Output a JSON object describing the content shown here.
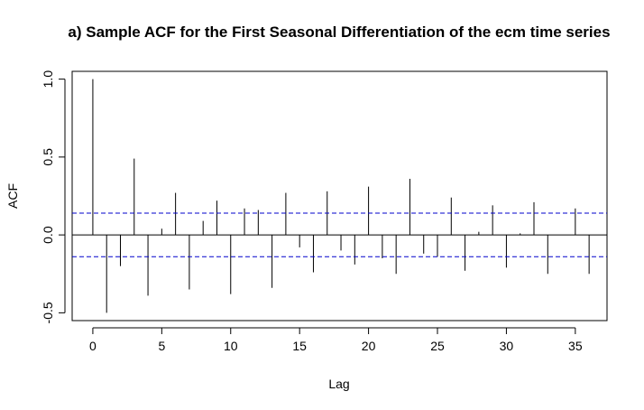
{
  "chart_data": {
    "type": "bar",
    "title": "a) Sample ACF for the First Seasonal Differentiation of the ecm time series",
    "xlabel": "Lag",
    "ylabel": "ACF",
    "xlim": [
      -1.5,
      37.3
    ],
    "ylim": [
      -0.55,
      1.05
    ],
    "x_ticks": [
      0,
      5,
      10,
      15,
      20,
      25,
      30,
      35
    ],
    "y_ticks": [
      -0.5,
      0.0,
      0.5,
      1.0
    ],
    "x_tick_labels": [
      "0",
      "5",
      "10",
      "15",
      "20",
      "25",
      "30",
      "35"
    ],
    "y_tick_labels": [
      "-0.5",
      "0.0",
      "0.5",
      "1.0"
    ],
    "lags": [
      0,
      1,
      2,
      3,
      4,
      5,
      6,
      7,
      8,
      9,
      10,
      11,
      12,
      13,
      14,
      15,
      16,
      17,
      18,
      19,
      20,
      21,
      22,
      23,
      24,
      25,
      26,
      27,
      28,
      29,
      30,
      31,
      32,
      33,
      34,
      35,
      36
    ],
    "values": [
      1.0,
      -0.5,
      -0.2,
      0.49,
      -0.39,
      0.04,
      0.27,
      -0.35,
      0.09,
      0.22,
      -0.38,
      0.17,
      0.16,
      -0.34,
      0.27,
      -0.08,
      -0.24,
      0.28,
      -0.1,
      -0.19,
      0.31,
      -0.15,
      -0.25,
      0.36,
      -0.12,
      -0.14,
      0.24,
      -0.23,
      0.02,
      0.19,
      -0.21,
      0.01,
      0.21,
      -0.25,
      0.0,
      0.17,
      -0.25
    ],
    "confidence_bound": 0.14,
    "colors": {
      "bars": "#000000",
      "bounds": "#0000cc",
      "axes": "#000000"
    }
  }
}
